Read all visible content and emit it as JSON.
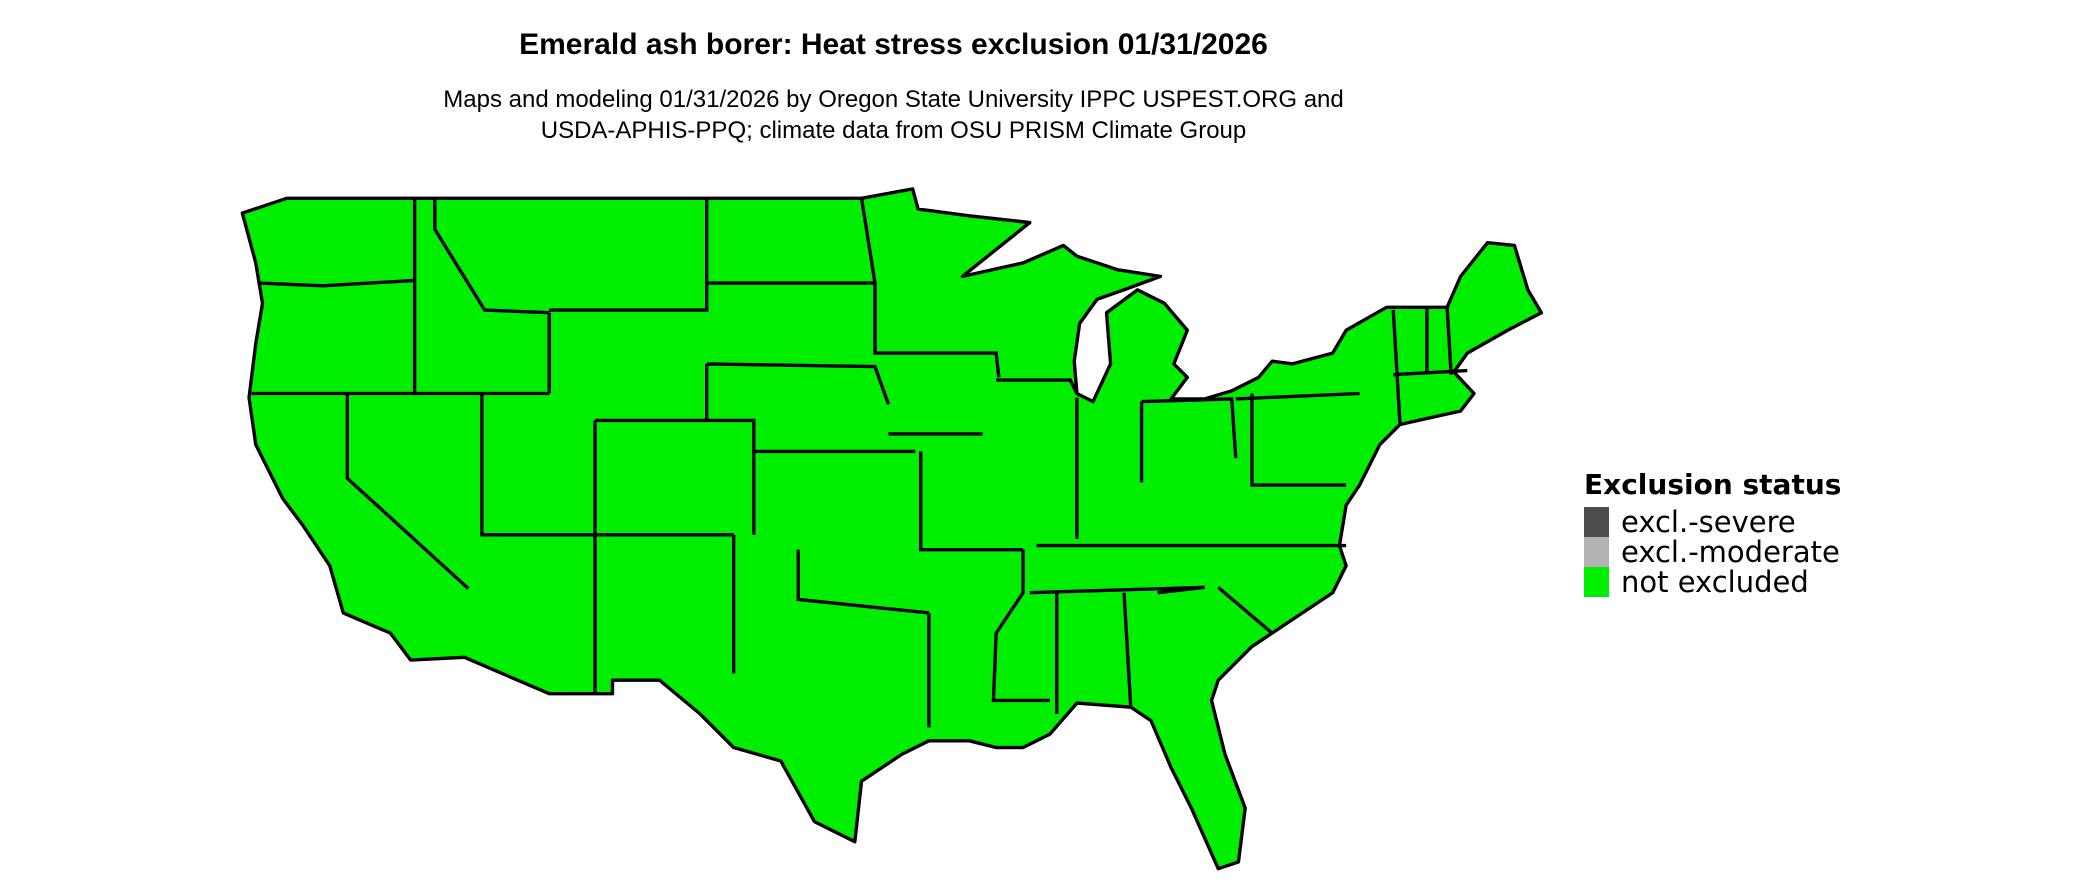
{
  "title": "Emerald ash borer: Heat stress exclusion 01/31/2026",
  "subtitle_line1": "Maps and modeling 01/31/2026 by Oregon State University IPPC USPEST.ORG and",
  "subtitle_line2": "USDA-APHIS-PPQ; climate data from OSU PRISM Climate Group",
  "map": {
    "region": "Contiguous United States",
    "fill_status": "not excluded",
    "fill_color": "#00EE00",
    "border_color": "#000000"
  },
  "legend": {
    "title": "Exclusion status",
    "items": [
      {
        "label": "excl.-severe",
        "color": "#4D4D4D"
      },
      {
        "label": "excl.-moderate",
        "color": "#B3B3B3"
      },
      {
        "label": "not excluded",
        "color": "#00EE00"
      }
    ]
  }
}
